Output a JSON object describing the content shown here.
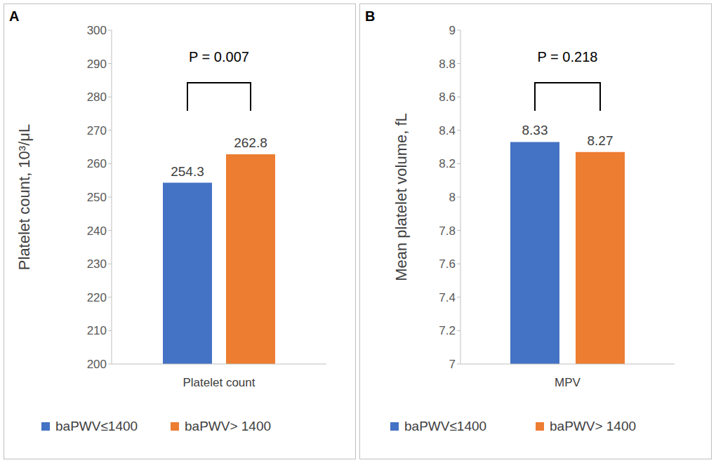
{
  "chart_data": [
    {
      "type": "bar",
      "title": "A",
      "categories": [
        "Platelet count"
      ],
      "series": [
        {
          "name": "baPWV≤1400",
          "color": "#4472c4",
          "values": [
            254.3
          ]
        },
        {
          "name": "baPWV> 1400",
          "color": "#ed7d31",
          "values": [
            262.8
          ]
        }
      ],
      "y_label": "Platelet count, 10³/μL",
      "ylim": [
        200,
        300
      ],
      "yticks": [
        200,
        210,
        220,
        230,
        240,
        250,
        260,
        270,
        280,
        290,
        300
      ],
      "annotation": "P = 0.007",
      "data_labels": true,
      "legend": "bottom",
      "grid": false
    },
    {
      "type": "bar",
      "title": "B",
      "categories": [
        "MPV"
      ],
      "series": [
        {
          "name": "baPWV≤1400",
          "color": "#4472c4",
          "values": [
            8.33
          ]
        },
        {
          "name": "baPWV> 1400",
          "color": "#ed7d31",
          "values": [
            8.27
          ]
        }
      ],
      "y_label": "Mean platelet volume, fL",
      "ylim": [
        7,
        9
      ],
      "yticks": [
        7,
        7.2,
        7.4,
        7.6,
        7.8,
        8,
        8.2,
        8.4,
        8.6,
        8.8,
        9
      ],
      "annotation": "P = 0.218",
      "data_labels": true,
      "legend": "bottom",
      "grid": false
    }
  ]
}
